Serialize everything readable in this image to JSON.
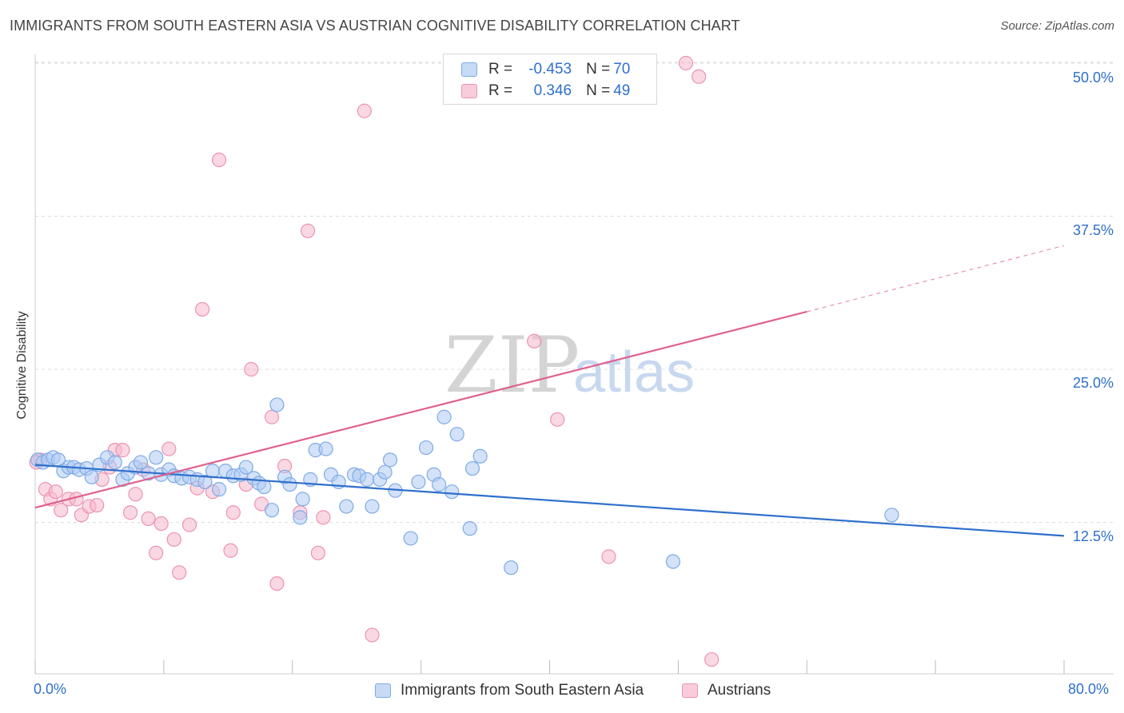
{
  "header": {
    "title": "IMMIGRANTS FROM SOUTH EASTERN ASIA VS AUSTRIAN COGNITIVE DISABILITY CORRELATION CHART",
    "source": "Source: ZipAtlas.com"
  },
  "watermark": {
    "zip": "ZIP",
    "atlas": "atlas"
  },
  "legend": {
    "r_label": "R =",
    "n_label": "N =",
    "rows": [
      {
        "r": "-0.453",
        "n": "70"
      },
      {
        "r": "0.346",
        "n": "49"
      }
    ]
  },
  "colors": {
    "blue_fill": "#aecbf2",
    "blue_stroke": "#7eaae6",
    "blue_line": "#2f6fcc",
    "pink_fill": "#f6b8cc",
    "pink_stroke": "#ec93b1",
    "pink_line": "#e0608e",
    "grid": "#dddddd",
    "axis_text": "#2f6fcc"
  },
  "chart_data": {
    "type": "scatter",
    "title": "IMMIGRANTS FROM SOUTH EASTERN ASIA VS AUSTRIAN COGNITIVE DISABILITY CORRELATION CHART",
    "xlabel": "",
    "ylabel": "Cognitive Disability",
    "xlim": [
      0,
      80
    ],
    "ylim": [
      0,
      50
    ],
    "x_tick_labels": [
      "0.0%",
      "80.0%"
    ],
    "y_ticks": [
      12.5,
      25.0,
      37.5,
      50.0
    ],
    "y_tick_labels": [
      "12.5%",
      "25.0%",
      "37.5%",
      "50.0%"
    ],
    "grid": true,
    "legend_position": "top-center",
    "series": [
      {
        "name": "Immigrants from South Eastern Asia",
        "color": "#aecbf2",
        "r": -0.453,
        "n": 70,
        "trend": {
          "x": [
            0,
            80
          ],
          "y": [
            17.2,
            11.4
          ]
        },
        "points": [
          [
            0.2,
            17.6
          ],
          [
            0.6,
            17.4
          ],
          [
            1.0,
            17.6
          ],
          [
            1.4,
            17.8
          ],
          [
            1.8,
            17.6
          ],
          [
            2.2,
            16.7
          ],
          [
            2.6,
            17.0
          ],
          [
            3.0,
            17.0
          ],
          [
            3.4,
            16.8
          ],
          [
            4.0,
            16.9
          ],
          [
            4.4,
            16.2
          ],
          [
            5.0,
            17.2
          ],
          [
            5.6,
            17.8
          ],
          [
            6.2,
            17.4
          ],
          [
            6.8,
            16.0
          ],
          [
            7.2,
            16.5
          ],
          [
            7.8,
            17.0
          ],
          [
            8.2,
            17.4
          ],
          [
            8.8,
            16.5
          ],
          [
            9.4,
            17.8
          ],
          [
            9.8,
            16.4
          ],
          [
            10.4,
            16.8
          ],
          [
            10.8,
            16.3
          ],
          [
            11.4,
            16.1
          ],
          [
            12.0,
            16.2
          ],
          [
            12.6,
            16.0
          ],
          [
            13.2,
            15.8
          ],
          [
            13.8,
            16.7
          ],
          [
            14.3,
            15.2
          ],
          [
            14.8,
            16.7
          ],
          [
            15.4,
            16.3
          ],
          [
            16.0,
            16.4
          ],
          [
            16.4,
            17.0
          ],
          [
            17.0,
            16.1
          ],
          [
            17.4,
            15.7
          ],
          [
            17.8,
            15.4
          ],
          [
            18.4,
            13.5
          ],
          [
            18.8,
            22.1
          ],
          [
            19.4,
            16.2
          ],
          [
            19.8,
            15.6
          ],
          [
            20.6,
            12.9
          ],
          [
            20.8,
            14.4
          ],
          [
            21.4,
            16.0
          ],
          [
            21.8,
            18.4
          ],
          [
            22.6,
            18.5
          ],
          [
            23.0,
            16.4
          ],
          [
            23.6,
            15.8
          ],
          [
            24.2,
            13.8
          ],
          [
            24.8,
            16.4
          ],
          [
            25.2,
            16.3
          ],
          [
            25.8,
            16.0
          ],
          [
            26.2,
            13.8
          ],
          [
            26.8,
            16.0
          ],
          [
            27.2,
            16.6
          ],
          [
            27.6,
            17.6
          ],
          [
            28.0,
            15.1
          ],
          [
            29.2,
            11.2
          ],
          [
            29.8,
            15.8
          ],
          [
            30.4,
            18.6
          ],
          [
            31.0,
            16.4
          ],
          [
            31.4,
            15.6
          ],
          [
            31.8,
            21.1
          ],
          [
            32.4,
            15.0
          ],
          [
            32.8,
            19.7
          ],
          [
            33.8,
            12.0
          ],
          [
            34.0,
            16.9
          ],
          [
            34.6,
            17.9
          ],
          [
            37.0,
            8.8
          ],
          [
            49.6,
            9.3
          ],
          [
            66.6,
            13.1
          ]
        ]
      },
      {
        "name": "Austrians",
        "color": "#f6b8cc",
        "r": 0.346,
        "n": 49,
        "trend": {
          "x": [
            0,
            60
          ],
          "y": [
            13.7,
            29.7
          ]
        },
        "trend_dashed": {
          "x": [
            60,
            80
          ],
          "y": [
            29.7,
            35.1
          ]
        },
        "points": [
          [
            0.4,
            17.6
          ],
          [
            0.8,
            15.2
          ],
          [
            1.2,
            14.4
          ],
          [
            1.6,
            15.0
          ],
          [
            2.0,
            13.5
          ],
          [
            2.6,
            14.4
          ],
          [
            3.2,
            14.4
          ],
          [
            3.6,
            13.1
          ],
          [
            4.2,
            13.8
          ],
          [
            4.8,
            13.9
          ],
          [
            5.2,
            16.0
          ],
          [
            5.8,
            17.0
          ],
          [
            6.2,
            18.4
          ],
          [
            6.8,
            18.4
          ],
          [
            7.4,
            13.3
          ],
          [
            7.8,
            14.8
          ],
          [
            8.4,
            16.8
          ],
          [
            8.8,
            12.8
          ],
          [
            9.4,
            10.0
          ],
          [
            9.8,
            12.4
          ],
          [
            10.4,
            18.5
          ],
          [
            10.8,
            11.1
          ],
          [
            11.2,
            8.4
          ],
          [
            12.0,
            12.3
          ],
          [
            12.6,
            15.3
          ],
          [
            13.0,
            29.9
          ],
          [
            13.8,
            15.0
          ],
          [
            14.3,
            42.1
          ],
          [
            15.2,
            10.2
          ],
          [
            15.4,
            13.3
          ],
          [
            16.4,
            15.6
          ],
          [
            16.8,
            25.0
          ],
          [
            17.6,
            14.0
          ],
          [
            18.4,
            21.1
          ],
          [
            18.8,
            7.5
          ],
          [
            19.4,
            17.1
          ],
          [
            20.6,
            13.3
          ],
          [
            21.2,
            36.3
          ],
          [
            22.0,
            10.0
          ],
          [
            22.4,
            12.9
          ],
          [
            25.6,
            46.1
          ],
          [
            26.2,
            3.3
          ],
          [
            38.8,
            27.3
          ],
          [
            40.6,
            20.9
          ],
          [
            44.6,
            9.7
          ],
          [
            50.6,
            50.0
          ],
          [
            51.6,
            48.9
          ],
          [
            52.6,
            1.3
          ],
          [
            0.1,
            17.4
          ]
        ]
      }
    ]
  }
}
